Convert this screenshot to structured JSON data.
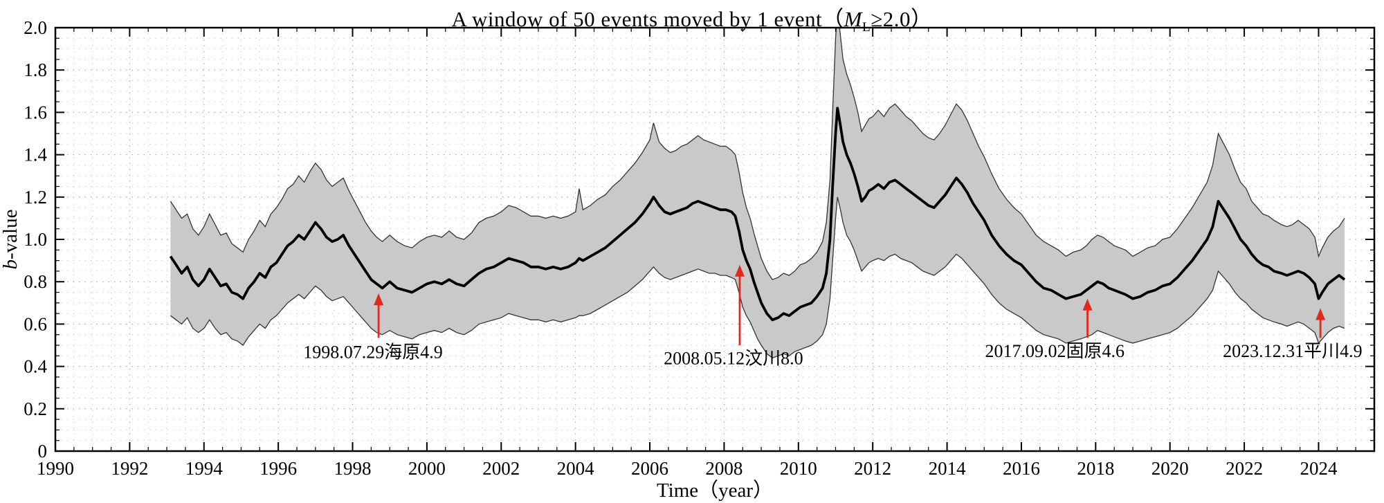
{
  "title": {
    "pre": "A window of 50 events moved by 1 event（",
    "mag": "M",
    "mag_sub": "L",
    "post": "≥2.0）"
  },
  "labels": {
    "ylabel_italic": "b",
    "ylabel_rest": "-value",
    "xlabel": "Time（year）"
  },
  "style": {
    "band_color": "#c9c9c9",
    "band_edge_color": "#333333",
    "line_color": "#000000",
    "arrow_color": "#e02a1e",
    "grid_minor_color": "#c9c9c9",
    "grid_major_color": "#9c9c9c",
    "axis_color": "#000000",
    "text_color": "#000000"
  },
  "chart_data": {
    "type": "line",
    "title": "A window of 50 events moved by 1 event（ML≥2.0）",
    "xlabel": "Time（year）",
    "ylabel": "b-value",
    "xlim": [
      1990,
      2025.5
    ],
    "ylim": [
      0,
      2
    ],
    "grid": true,
    "x_ticks": [
      1990,
      1992,
      1994,
      1996,
      1998,
      2000,
      2002,
      2004,
      2006,
      2008,
      2010,
      2012,
      2014,
      2016,
      2018,
      2020,
      2022,
      2024
    ],
    "x_tick_labels": [
      "1990",
      "1992",
      "1994",
      "1996",
      "1998",
      "2000",
      "2002",
      "2004",
      "2006",
      "2008",
      "2010",
      "2012",
      "2014",
      "2016",
      "2018",
      "2020",
      "2022",
      "2024"
    ],
    "y_ticks": [
      0,
      0.2,
      0.4,
      0.6,
      0.8,
      1.0,
      1.2,
      1.4,
      1.6,
      1.8,
      2.0
    ],
    "y_tick_labels": [
      "0",
      "0.2",
      "0.4",
      "0.6",
      "0.8",
      "1.0",
      "1.2",
      "1.4",
      "1.6",
      "1.8",
      "2.0"
    ],
    "point_format": [
      "year",
      "lower",
      "b_value",
      "upper"
    ],
    "points": [
      [
        1993.1,
        0.64,
        0.92,
        1.18
      ],
      [
        1993.25,
        0.62,
        0.88,
        1.14
      ],
      [
        1993.4,
        0.6,
        0.84,
        1.1
      ],
      [
        1993.55,
        0.63,
        0.87,
        1.12
      ],
      [
        1993.7,
        0.58,
        0.81,
        1.05
      ],
      [
        1993.85,
        0.56,
        0.78,
        1.02
      ],
      [
        1994.0,
        0.58,
        0.81,
        1.06
      ],
      [
        1994.15,
        0.62,
        0.86,
        1.12
      ],
      [
        1994.3,
        0.58,
        0.82,
        1.07
      ],
      [
        1994.45,
        0.55,
        0.78,
        1.02
      ],
      [
        1994.6,
        0.56,
        0.79,
        1.03
      ],
      [
        1994.75,
        0.53,
        0.75,
        0.98
      ],
      [
        1994.9,
        0.52,
        0.74,
        0.96
      ],
      [
        1995.05,
        0.5,
        0.72,
        0.94
      ],
      [
        1995.2,
        0.54,
        0.77,
        1.0
      ],
      [
        1995.35,
        0.57,
        0.8,
        1.04
      ],
      [
        1995.5,
        0.6,
        0.84,
        1.09
      ],
      [
        1995.65,
        0.58,
        0.82,
        1.06
      ],
      [
        1995.8,
        0.62,
        0.87,
        1.12
      ],
      [
        1995.95,
        0.64,
        0.89,
        1.15
      ],
      [
        1996.1,
        0.67,
        0.93,
        1.19
      ],
      [
        1996.25,
        0.7,
        0.97,
        1.24
      ],
      [
        1996.4,
        0.72,
        0.99,
        1.26
      ],
      [
        1996.55,
        0.74,
        1.02,
        1.3
      ],
      [
        1996.7,
        0.72,
        1.0,
        1.27
      ],
      [
        1996.85,
        0.75,
        1.04,
        1.32
      ],
      [
        1997.0,
        0.78,
        1.08,
        1.36
      ],
      [
        1997.15,
        0.76,
        1.05,
        1.33
      ],
      [
        1997.3,
        0.73,
        1.01,
        1.28
      ],
      [
        1997.45,
        0.71,
        0.99,
        1.25
      ],
      [
        1997.6,
        0.72,
        1.0,
        1.27
      ],
      [
        1997.75,
        0.73,
        1.02,
        1.29
      ],
      [
        1997.9,
        0.7,
        0.97,
        1.23
      ],
      [
        1998.05,
        0.67,
        0.93,
        1.18
      ],
      [
        1998.2,
        0.64,
        0.89,
        1.13
      ],
      [
        1998.35,
        0.61,
        0.85,
        1.08
      ],
      [
        1998.5,
        0.58,
        0.81,
        1.04
      ],
      [
        1998.65,
        0.56,
        0.79,
        1.01
      ],
      [
        1998.8,
        0.55,
        0.77,
        0.99
      ],
      [
        1999.0,
        0.57,
        0.8,
        1.02
      ],
      [
        1999.2,
        0.55,
        0.77,
        0.99
      ],
      [
        1999.4,
        0.54,
        0.76,
        0.97
      ],
      [
        1999.6,
        0.53,
        0.75,
        0.96
      ],
      [
        1999.8,
        0.55,
        0.77,
        0.99
      ],
      [
        2000.0,
        0.56,
        0.79,
        1.01
      ],
      [
        2000.2,
        0.57,
        0.8,
        1.02
      ],
      [
        2000.4,
        0.56,
        0.79,
        1.01
      ],
      [
        2000.6,
        0.58,
        0.81,
        1.04
      ],
      [
        2000.8,
        0.56,
        0.79,
        1.01
      ],
      [
        2001.0,
        0.55,
        0.78,
        1.0
      ],
      [
        2001.2,
        0.57,
        0.81,
        1.03
      ],
      [
        2001.4,
        0.6,
        0.84,
        1.08
      ],
      [
        2001.6,
        0.61,
        0.86,
        1.1
      ],
      [
        2001.8,
        0.62,
        0.87,
        1.11
      ],
      [
        2002.0,
        0.63,
        0.89,
        1.13
      ],
      [
        2002.2,
        0.65,
        0.91,
        1.16
      ],
      [
        2002.4,
        0.64,
        0.9,
        1.15
      ],
      [
        2002.6,
        0.63,
        0.89,
        1.13
      ],
      [
        2002.8,
        0.62,
        0.87,
        1.11
      ],
      [
        2003.0,
        0.62,
        0.87,
        1.11
      ],
      [
        2003.2,
        0.61,
        0.86,
        1.1
      ],
      [
        2003.4,
        0.62,
        0.87,
        1.11
      ],
      [
        2003.6,
        0.61,
        0.86,
        1.1
      ],
      [
        2003.8,
        0.62,
        0.87,
        1.11
      ],
      [
        2004.0,
        0.63,
        0.89,
        1.13
      ],
      [
        2004.1,
        0.64,
        0.91,
        1.24
      ],
      [
        2004.2,
        0.64,
        0.9,
        1.14
      ],
      [
        2004.4,
        0.65,
        0.92,
        1.16
      ],
      [
        2004.6,
        0.67,
        0.94,
        1.19
      ],
      [
        2004.8,
        0.69,
        0.96,
        1.21
      ],
      [
        2005.0,
        0.71,
        0.99,
        1.25
      ],
      [
        2005.2,
        0.73,
        1.02,
        1.28
      ],
      [
        2005.4,
        0.75,
        1.05,
        1.32
      ],
      [
        2005.6,
        0.78,
        1.08,
        1.36
      ],
      [
        2005.8,
        0.81,
        1.12,
        1.41
      ],
      [
        2006.0,
        0.85,
        1.17,
        1.47
      ],
      [
        2006.1,
        0.87,
        1.2,
        1.55
      ],
      [
        2006.25,
        0.84,
        1.16,
        1.46
      ],
      [
        2006.4,
        0.82,
        1.13,
        1.43
      ],
      [
        2006.55,
        0.81,
        1.12,
        1.41
      ],
      [
        2006.7,
        0.82,
        1.13,
        1.42
      ],
      [
        2006.85,
        0.83,
        1.14,
        1.44
      ],
      [
        2007.0,
        0.84,
        1.15,
        1.45
      ],
      [
        2007.15,
        0.85,
        1.17,
        1.47
      ],
      [
        2007.3,
        0.86,
        1.18,
        1.49
      ],
      [
        2007.45,
        0.85,
        1.17,
        1.47
      ],
      [
        2007.6,
        0.84,
        1.16,
        1.46
      ],
      [
        2007.75,
        0.84,
        1.15,
        1.45
      ],
      [
        2007.9,
        0.83,
        1.14,
        1.44
      ],
      [
        2008.05,
        0.83,
        1.14,
        1.44
      ],
      [
        2008.2,
        0.82,
        1.13,
        1.42
      ],
      [
        2008.3,
        0.81,
        1.11,
        1.4
      ],
      [
        2008.4,
        0.75,
        1.04,
        1.32
      ],
      [
        2008.5,
        0.68,
        0.95,
        1.22
      ],
      [
        2008.6,
        0.64,
        0.9,
        1.15
      ],
      [
        2008.7,
        0.61,
        0.86,
        1.1
      ],
      [
        2008.8,
        0.57,
        0.8,
        1.03
      ],
      [
        2008.9,
        0.53,
        0.75,
        0.97
      ],
      [
        2009.0,
        0.5,
        0.7,
        0.91
      ],
      [
        2009.15,
        0.46,
        0.65,
        0.85
      ],
      [
        2009.3,
        0.44,
        0.62,
        0.81
      ],
      [
        2009.45,
        0.45,
        0.63,
        0.82
      ],
      [
        2009.6,
        0.46,
        0.65,
        0.84
      ],
      [
        2009.75,
        0.45,
        0.64,
        0.83
      ],
      [
        2009.9,
        0.47,
        0.66,
        0.85
      ],
      [
        2010.05,
        0.48,
        0.68,
        0.88
      ],
      [
        2010.2,
        0.49,
        0.69,
        0.89
      ],
      [
        2010.35,
        0.5,
        0.7,
        0.91
      ],
      [
        2010.5,
        0.52,
        0.73,
        0.94
      ],
      [
        2010.65,
        0.55,
        0.77,
        0.99
      ],
      [
        2010.75,
        0.6,
        0.84,
        1.08
      ],
      [
        2010.85,
        0.72,
        1.0,
        1.28
      ],
      [
        2010.92,
        0.9,
        1.25,
        1.6
      ],
      [
        2011.0,
        1.1,
        1.5,
        1.95
      ],
      [
        2011.05,
        1.2,
        1.62,
        2.08
      ],
      [
        2011.12,
        1.15,
        1.55,
        1.98
      ],
      [
        2011.2,
        1.08,
        1.46,
        1.85
      ],
      [
        2011.3,
        1.02,
        1.4,
        1.78
      ],
      [
        2011.4,
        0.99,
        1.36,
        1.73
      ],
      [
        2011.5,
        0.95,
        1.31,
        1.67
      ],
      [
        2011.6,
        0.9,
        1.25,
        1.6
      ],
      [
        2011.7,
        0.85,
        1.18,
        1.51
      ],
      [
        2011.8,
        0.87,
        1.2,
        1.54
      ],
      [
        2011.9,
        0.89,
        1.23,
        1.57
      ],
      [
        2012.0,
        0.9,
        1.24,
        1.58
      ],
      [
        2012.15,
        0.91,
        1.26,
        1.61
      ],
      [
        2012.3,
        0.9,
        1.24,
        1.58
      ],
      [
        2012.45,
        0.92,
        1.27,
        1.62
      ],
      [
        2012.6,
        0.93,
        1.28,
        1.64
      ],
      [
        2012.75,
        0.91,
        1.26,
        1.61
      ],
      [
        2012.9,
        0.9,
        1.24,
        1.58
      ],
      [
        2013.05,
        0.89,
        1.22,
        1.56
      ],
      [
        2013.2,
        0.87,
        1.2,
        1.53
      ],
      [
        2013.35,
        0.85,
        1.18,
        1.5
      ],
      [
        2013.5,
        0.84,
        1.16,
        1.48
      ],
      [
        2013.65,
        0.83,
        1.15,
        1.47
      ],
      [
        2013.8,
        0.85,
        1.18,
        1.5
      ],
      [
        2013.95,
        0.87,
        1.21,
        1.54
      ],
      [
        2014.1,
        0.9,
        1.25,
        1.59
      ],
      [
        2014.25,
        0.93,
        1.29,
        1.64
      ],
      [
        2014.4,
        0.91,
        1.26,
        1.61
      ],
      [
        2014.55,
        0.88,
        1.22,
        1.56
      ],
      [
        2014.7,
        0.85,
        1.17,
        1.5
      ],
      [
        2014.85,
        0.82,
        1.13,
        1.44
      ],
      [
        2015.0,
        0.79,
        1.09,
        1.39
      ],
      [
        2015.2,
        0.74,
        1.02,
        1.31
      ],
      [
        2015.4,
        0.7,
        0.97,
        1.24
      ],
      [
        2015.6,
        0.67,
        0.93,
        1.19
      ],
      [
        2015.8,
        0.65,
        0.9,
        1.15
      ],
      [
        2016.0,
        0.63,
        0.88,
        1.12
      ],
      [
        2016.2,
        0.6,
        0.84,
        1.07
      ],
      [
        2016.4,
        0.57,
        0.8,
        1.02
      ],
      [
        2016.6,
        0.55,
        0.77,
        0.99
      ],
      [
        2016.8,
        0.54,
        0.76,
        0.97
      ],
      [
        2017.0,
        0.53,
        0.74,
        0.95
      ],
      [
        2017.2,
        0.51,
        0.72,
        0.92
      ],
      [
        2017.4,
        0.52,
        0.73,
        0.94
      ],
      [
        2017.6,
        0.53,
        0.74,
        0.95
      ],
      [
        2017.75,
        0.54,
        0.76,
        0.97
      ],
      [
        2017.9,
        0.55,
        0.78,
        1.0
      ],
      [
        2018.05,
        0.57,
        0.8,
        1.02
      ],
      [
        2018.2,
        0.56,
        0.79,
        1.01
      ],
      [
        2018.35,
        0.55,
        0.77,
        0.99
      ],
      [
        2018.5,
        0.54,
        0.76,
        0.97
      ],
      [
        2018.65,
        0.53,
        0.75,
        0.96
      ],
      [
        2018.8,
        0.52,
        0.74,
        0.95
      ],
      [
        2019.0,
        0.51,
        0.72,
        0.92
      ],
      [
        2019.2,
        0.52,
        0.73,
        0.94
      ],
      [
        2019.4,
        0.53,
        0.75,
        0.96
      ],
      [
        2019.6,
        0.54,
        0.76,
        0.97
      ],
      [
        2019.8,
        0.55,
        0.78,
        1.0
      ],
      [
        2020.0,
        0.56,
        0.79,
        1.01
      ],
      [
        2020.2,
        0.58,
        0.82,
        1.05
      ],
      [
        2020.4,
        0.61,
        0.86,
        1.1
      ],
      [
        2020.6,
        0.64,
        0.9,
        1.15
      ],
      [
        2020.8,
        0.68,
        0.95,
        1.21
      ],
      [
        2021.0,
        0.72,
        1.0,
        1.27
      ],
      [
        2021.15,
        0.76,
        1.06,
        1.35
      ],
      [
        2021.3,
        0.85,
        1.18,
        1.5
      ],
      [
        2021.45,
        0.82,
        1.14,
        1.45
      ],
      [
        2021.6,
        0.79,
        1.1,
        1.4
      ],
      [
        2021.75,
        0.75,
        1.05,
        1.33
      ],
      [
        2021.9,
        0.72,
        1.0,
        1.27
      ],
      [
        2022.05,
        0.7,
        0.97,
        1.24
      ],
      [
        2022.2,
        0.67,
        0.93,
        1.18
      ],
      [
        2022.35,
        0.65,
        0.9,
        1.15
      ],
      [
        2022.5,
        0.63,
        0.88,
        1.12
      ],
      [
        2022.65,
        0.62,
        0.87,
        1.11
      ],
      [
        2022.8,
        0.61,
        0.85,
        1.09
      ],
      [
        2023.0,
        0.6,
        0.84,
        1.07
      ],
      [
        2023.15,
        0.59,
        0.83,
        1.06
      ],
      [
        2023.3,
        0.6,
        0.84,
        1.07
      ],
      [
        2023.45,
        0.61,
        0.85,
        1.09
      ],
      [
        2023.6,
        0.6,
        0.84,
        1.07
      ],
      [
        2023.75,
        0.58,
        0.82,
        1.05
      ],
      [
        2023.9,
        0.56,
        0.79,
        1.01
      ],
      [
        2024.0,
        0.51,
        0.72,
        0.92
      ],
      [
        2024.1,
        0.53,
        0.75,
        0.96
      ],
      [
        2024.25,
        0.56,
        0.79,
        1.01
      ],
      [
        2024.4,
        0.58,
        0.81,
        1.04
      ],
      [
        2024.55,
        0.59,
        0.83,
        1.06
      ],
      [
        2024.7,
        0.58,
        0.81,
        1.1
      ]
    ],
    "annotations": [
      {
        "label": "1998.07.29海原4.9",
        "arrow_x": 1998.7,
        "tip_b": 0.745,
        "tail_b": 0.535,
        "text_x": 1998.55,
        "text_b": 0.44
      },
      {
        "label": "2008.05.12汶川8.0",
        "arrow_x": 2008.42,
        "tip_b": 0.88,
        "tail_b": 0.5,
        "text_x": 2008.25,
        "text_b": 0.41
      },
      {
        "label": "2017.09.02固原4.6",
        "arrow_x": 2017.78,
        "tip_b": 0.72,
        "tail_b": 0.535,
        "text_x": 2016.9,
        "text_b": 0.445
      },
      {
        "label": "2023.12.31平川4.9",
        "arrow_x": 2024.05,
        "tip_b": 0.675,
        "tail_b": 0.535,
        "text_x": 2023.3,
        "text_b": 0.445
      }
    ],
    "legend": "none"
  }
}
